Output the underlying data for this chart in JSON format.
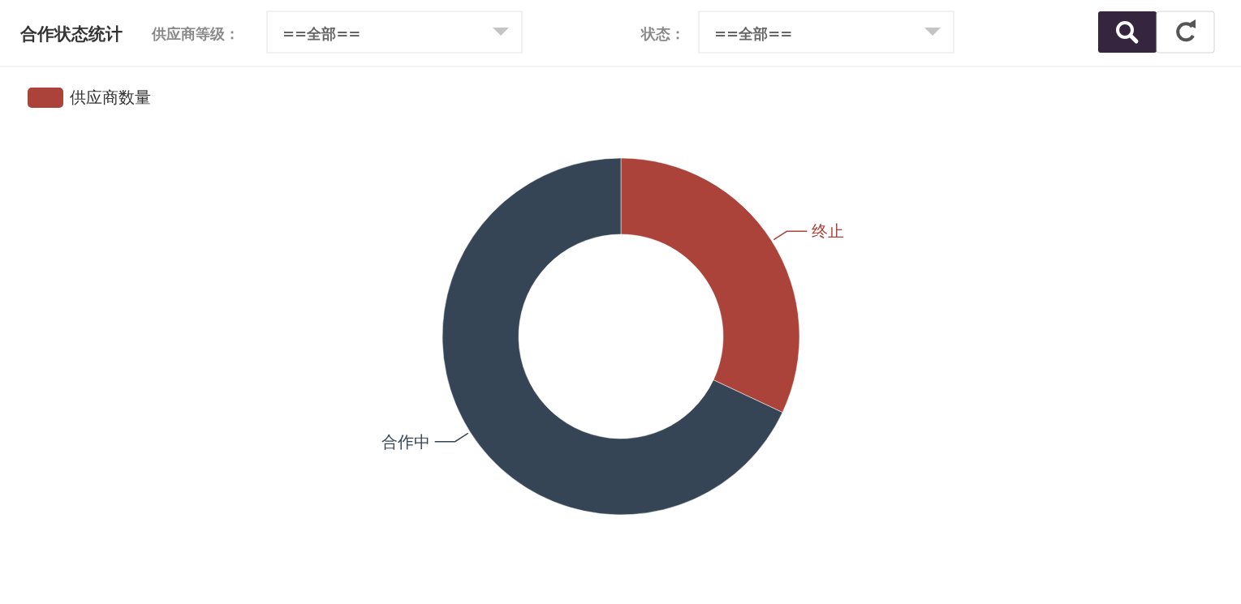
{
  "chart_data": {
    "type": "donut",
    "title": "合作状态统计",
    "annotations": [
      "供应商等级：",
      "==全部==",
      "状态：",
      "==全部=="
    ],
    "categories": [
      "终止",
      "合作中"
    ],
    "colors": [
      "#ab433a",
      "#364555"
    ],
    "series": [
      {
        "name": "供应商数量",
        "values": [
          32,
          68
        ]
      }
    ],
    "legend": "top left"
  }
}
